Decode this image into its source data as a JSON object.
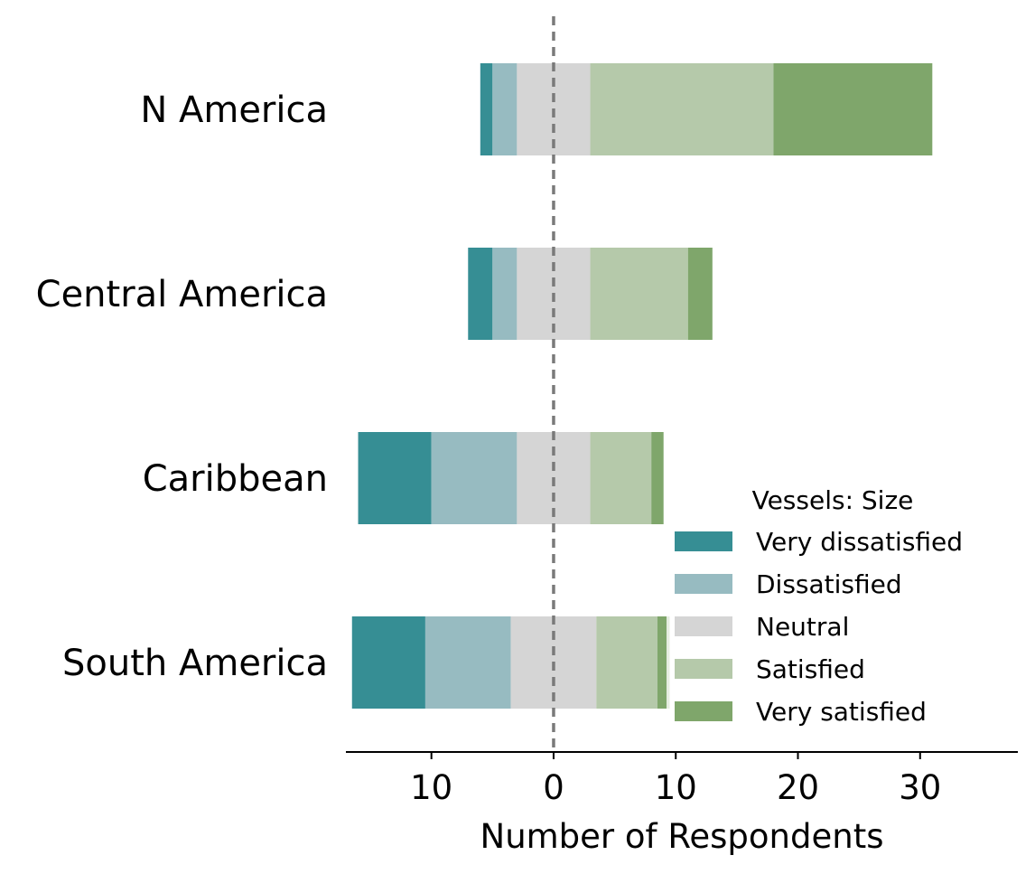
{
  "chart_data": {
    "type": "bar",
    "orientation": "horizontal",
    "stacked": "diverging",
    "categories": [
      "N America",
      "Central America",
      "Caribbean",
      "South America"
    ],
    "series": [
      {
        "name": "Very dissatisfied",
        "color": "#368e94",
        "values": [
          1,
          2,
          6,
          6
        ]
      },
      {
        "name": "Dissatisfied",
        "color": "#97bbc1",
        "values": [
          2,
          2,
          7,
          7
        ]
      },
      {
        "name": "Neutral",
        "color": "#d5d5d5",
        "values": [
          6,
          6,
          6,
          7
        ]
      },
      {
        "name": "Satisfied",
        "color": "#b5c9aa",
        "values": [
          15,
          8,
          5,
          5
        ]
      },
      {
        "name": "Very satisfied",
        "color": "#7fa66b",
        "values": [
          13,
          2,
          1,
          1
        ]
      }
    ],
    "xlabel": "Number of Respondents",
    "ylabel": "",
    "xlim": [
      -17,
      38
    ],
    "xticks": [
      -10,
      0,
      10,
      20,
      30
    ],
    "xtick_labels": [
      "10",
      "0",
      "10",
      "20",
      "30"
    ],
    "center_line": 0,
    "legend": {
      "title": "Vessels: Size",
      "position": "lower-right"
    },
    "grid": false
  }
}
